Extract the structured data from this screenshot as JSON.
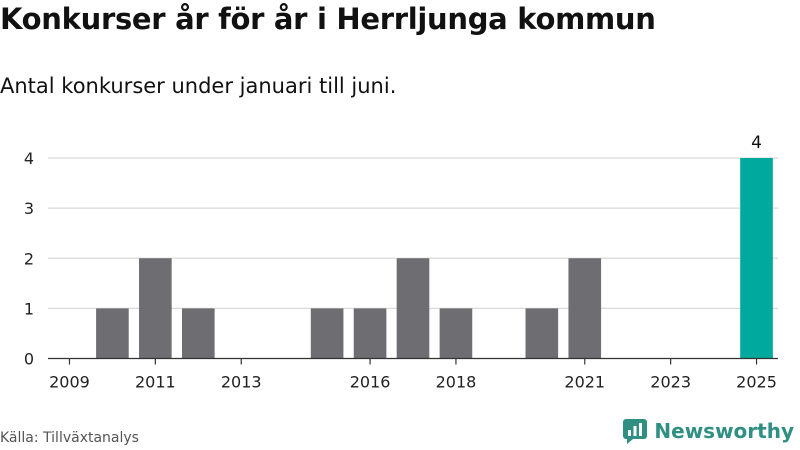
{
  "title": "Konkurser år för år i Herrljunga kommun",
  "subtitle": "Antal konkurser under januari till juni.",
  "source": "Källa: Tillväxtanalys",
  "logo": {
    "text": "Newsworthy",
    "icon": "newsworthy-logo-icon",
    "color": "#2f8f83"
  },
  "colors": {
    "bar": "#6e6d72",
    "highlight": "#00a99d",
    "grid": "#d9d9d9",
    "axis": "#333333"
  },
  "chart_data": {
    "type": "bar",
    "categories": [
      "2009",
      "2010",
      "2011",
      "2012",
      "2013",
      "2014",
      "2015",
      "2016",
      "2017",
      "2018",
      "2019",
      "2020",
      "2021",
      "2022",
      "2023",
      "2024",
      "2025"
    ],
    "values": [
      0,
      1,
      2,
      1,
      0,
      0,
      1,
      1,
      2,
      1,
      0,
      1,
      2,
      0,
      0,
      0,
      4
    ],
    "xtick_labels": [
      "2009",
      "2011",
      "2013",
      "2016",
      "2018",
      "2021",
      "2023",
      "2025"
    ],
    "yticks": [
      0,
      1,
      2,
      3,
      4
    ],
    "ylim": [
      0,
      4
    ],
    "highlight_category": "2025",
    "data_labels": [
      {
        "category": "2025",
        "text": "4"
      }
    ],
    "grid": "horizontal",
    "legend": "none"
  }
}
